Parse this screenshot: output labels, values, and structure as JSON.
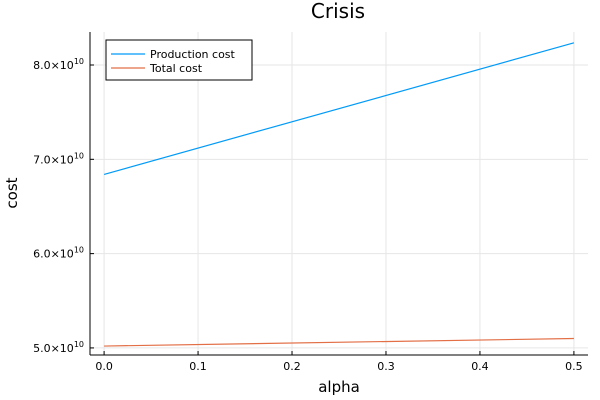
{
  "chart_data": {
    "type": "line",
    "title": "Crisis",
    "xlabel": "alpha",
    "ylabel": "cost",
    "xlim": [
      -0.015,
      0.515
    ],
    "ylim": [
      49250000000.0,
      83500000000.0
    ],
    "x_ticks": [
      0.0,
      0.1,
      0.2,
      0.3,
      0.4,
      0.5
    ],
    "x_tick_labels": [
      "0.0",
      "0.1",
      "0.2",
      "0.3",
      "0.4",
      "0.5"
    ],
    "y_ticks": [
      50000000000.0,
      60000000000.0,
      70000000000.0,
      80000000000.0
    ],
    "y_tick_mantissas": [
      "5.0",
      "6.0",
      "7.0",
      "8.0"
    ],
    "y_tick_times": "×",
    "y_tick_base": "10",
    "y_tick_exponent": "10",
    "grid": true,
    "legend_position": "top-left",
    "series": [
      {
        "name": "Production cost",
        "color": "#009AFA",
        "x": [
          0.0,
          0.5
        ],
        "y": [
          68400000000.0,
          82350000000.0
        ]
      },
      {
        "name": "Total cost",
        "color": "#E26F46",
        "x": [
          0.0,
          0.5
        ],
        "y": [
          50200000000.0,
          51000000000.0
        ]
      }
    ]
  }
}
